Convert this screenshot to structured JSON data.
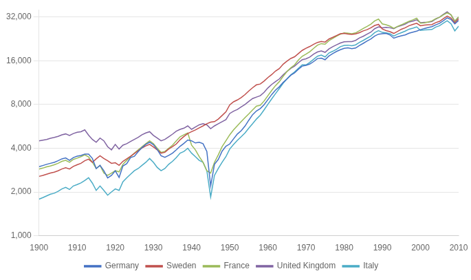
{
  "chart_data": {
    "type": "line",
    "log": "y",
    "grid": "y",
    "legend": "bottom",
    "x": [
      1900,
      1901,
      1902,
      1903,
      1904,
      1905,
      1906,
      1907,
      1908,
      1909,
      1910,
      1911,
      1912,
      1913,
      1914,
      1915,
      1916,
      1917,
      1918,
      1919,
      1920,
      1921,
      1922,
      1923,
      1924,
      1925,
      1926,
      1927,
      1928,
      1929,
      1930,
      1931,
      1932,
      1933,
      1934,
      1935,
      1936,
      1937,
      1938,
      1939,
      1940,
      1941,
      1942,
      1943,
      1944,
      1945,
      1946,
      1947,
      1948,
      1949,
      1950,
      1951,
      1952,
      1953,
      1954,
      1955,
      1956,
      1957,
      1958,
      1959,
      1960,
      1961,
      1962,
      1963,
      1964,
      1965,
      1966,
      1967,
      1968,
      1969,
      1970,
      1971,
      1972,
      1973,
      1974,
      1975,
      1976,
      1977,
      1978,
      1979,
      1980,
      1981,
      1982,
      1983,
      1984,
      1985,
      1986,
      1987,
      1988,
      1989,
      1990,
      1991,
      1992,
      1993,
      1994,
      1995,
      1996,
      1997,
      1998,
      1999,
      2000,
      2001,
      2002,
      2003,
      2004,
      2005,
      2006,
      2007,
      2008,
      2009,
      2010
    ],
    "series": [
      {
        "name": "Germany",
        "color": "#4472C4",
        "values": [
          2985,
          3040,
          3100,
          3150,
          3200,
          3280,
          3380,
          3430,
          3300,
          3450,
          3530,
          3570,
          3650,
          3648,
          3400,
          2900,
          3050,
          2800,
          2500,
          2600,
          2796,
          2520,
          3020,
          3130,
          3450,
          3520,
          3790,
          4040,
          4250,
          4400,
          4230,
          3920,
          3550,
          3460,
          3570,
          3700,
          3900,
          4130,
          4320,
          4560,
          4500,
          4350,
          4400,
          4300,
          3800,
          2200,
          3100,
          3350,
          3820,
          4130,
          4280,
          4640,
          5010,
          5280,
          5680,
          6240,
          6810,
          7220,
          7500,
          7970,
          8640,
          9370,
          10050,
          10600,
          11350,
          12000,
          12720,
          13200,
          14000,
          14700,
          14870,
          15200,
          15800,
          16580,
          16700,
          16280,
          17260,
          17940,
          18560,
          19080,
          19480,
          19650,
          19400,
          19600,
          20400,
          21100,
          21900,
          22600,
          23700,
          24400,
          24600,
          24680,
          24100,
          22900,
          23400,
          23760,
          24100,
          24760,
          25200,
          25600,
          26200,
          26700,
          27100,
          27500,
          28300,
          29000,
          30200,
          31600,
          30800,
          28700,
          30300
        ]
      },
      {
        "name": "Sweden",
        "color": "#C0504D",
        "values": [
          2561,
          2600,
          2650,
          2700,
          2740,
          2800,
          2880,
          2940,
          2880,
          3000,
          3080,
          3150,
          3280,
          3362,
          3200,
          3380,
          3550,
          3400,
          3280,
          3150,
          3180,
          3050,
          3250,
          3380,
          3520,
          3680,
          3850,
          4020,
          4150,
          4250,
          4080,
          3900,
          3700,
          3750,
          3950,
          4100,
          4280,
          4580,
          4820,
          5050,
          5200,
          5350,
          5520,
          5700,
          5900,
          6050,
          6100,
          6350,
          6720,
          7120,
          7950,
          8350,
          8600,
          8930,
          9360,
          9920,
          10440,
          10930,
          11070,
          11600,
          12260,
          12850,
          13600,
          14150,
          15150,
          15900,
          16600,
          17050,
          17950,
          18870,
          19510,
          20080,
          20800,
          21400,
          21750,
          21530,
          22600,
          23200,
          23870,
          24550,
          24700,
          24460,
          24340,
          24500,
          25000,
          25700,
          26200,
          27000,
          28000,
          28500,
          26500,
          25800,
          25400,
          24700,
          25500,
          26400,
          27000,
          27900,
          28500,
          29000,
          27900,
          28200,
          28300,
          28400,
          29300,
          29900,
          31200,
          32500,
          31500,
          29200,
          31100
        ]
      },
      {
        "name": "France",
        "color": "#9BBB59",
        "values": [
          2876,
          2920,
          2980,
          3020,
          3080,
          3150,
          3250,
          3300,
          3200,
          3350,
          3420,
          3500,
          3600,
          3485,
          3200,
          2900,
          3050,
          2700,
          2600,
          2700,
          2800,
          2750,
          3100,
          3300,
          3500,
          3700,
          3900,
          4100,
          4300,
          4500,
          4300,
          4000,
          3750,
          3800,
          4000,
          4200,
          4500,
          4800,
          4950,
          5100,
          4200,
          3900,
          3500,
          3200,
          2800,
          2700,
          3200,
          3600,
          4100,
          4500,
          4950,
          5350,
          5720,
          6100,
          6500,
          6900,
          7350,
          7800,
          7900,
          8450,
          9200,
          10000,
          10800,
          11500,
          12500,
          13500,
          14300,
          15000,
          16200,
          17200,
          17800,
          18500,
          19500,
          20500,
          21000,
          20800,
          22000,
          22800,
          23600,
          24400,
          24900,
          24800,
          24600,
          24900,
          25800,
          26700,
          27600,
          28600,
          30100,
          31000,
          28700,
          28300,
          27700,
          26800,
          27600,
          28300,
          29100,
          29900,
          30600,
          31400,
          29000,
          29200,
          29600,
          30100,
          31200,
          31900,
          33100,
          34200,
          33200,
          30100,
          32100
        ]
      },
      {
        "name": "United Kingdom",
        "color": "#8064A2",
        "values": [
          4492,
          4550,
          4600,
          4680,
          4750,
          4830,
          4950,
          5020,
          4900,
          5050,
          5150,
          5200,
          5350,
          4921,
          4600,
          4400,
          4700,
          4500,
          4100,
          3900,
          4250,
          3950,
          4200,
          4300,
          4450,
          4600,
          4750,
          4950,
          5100,
          5200,
          4900,
          4700,
          4500,
          4600,
          4800,
          5000,
          5250,
          5400,
          5500,
          5700,
          5400,
          5600,
          5800,
          5900,
          5800,
          5450,
          5700,
          5900,
          6100,
          6300,
          6939,
          7200,
          7400,
          7700,
          8000,
          8400,
          8800,
          9000,
          9200,
          9700,
          10400,
          11000,
          11500,
          12000,
          12800,
          13500,
          14200,
          14700,
          15500,
          16300,
          16500,
          17000,
          17800,
          18400,
          18700,
          18300,
          19300,
          20000,
          20600,
          21200,
          21600,
          21700,
          21700,
          22100,
          23000,
          23600,
          24400,
          25200,
          26600,
          27400,
          27000,
          27200,
          27000,
          26600,
          27500,
          28000,
          28600,
          29600,
          30000,
          30600,
          29300,
          29400,
          29500,
          29800,
          31000,
          32000,
          33400,
          34800,
          33100,
          29800,
          31900
        ]
      },
      {
        "name": "Italy",
        "color": "#4BACC6",
        "values": [
          1785,
          1830,
          1880,
          1930,
          1960,
          2020,
          2100,
          2150,
          2080,
          2200,
          2250,
          2310,
          2400,
          2507,
          2300,
          2050,
          2200,
          2050,
          1900,
          2000,
          2100,
          2050,
          2350,
          2500,
          2650,
          2800,
          2900,
          3050,
          3200,
          3400,
          3200,
          2950,
          2800,
          2900,
          3100,
          3250,
          3450,
          3700,
          3800,
          4000,
          3700,
          3500,
          3300,
          3200,
          2800,
          1850,
          2600,
          2900,
          3200,
          3500,
          3950,
          4250,
          4530,
          4800,
          5100,
          5500,
          5900,
          6350,
          6750,
          7350,
          8020,
          8750,
          9500,
          10300,
          11200,
          12000,
          12800,
          13400,
          14200,
          15000,
          15000,
          15600,
          16400,
          17200,
          17500,
          17000,
          18100,
          18600,
          19200,
          20000,
          20400,
          20500,
          20300,
          20600,
          21400,
          22100,
          22900,
          23700,
          25000,
          25800,
          25100,
          24900,
          24600,
          23700,
          24400,
          25000,
          25600,
          26400,
          26800,
          27400,
          25900,
          26100,
          26200,
          26300,
          27300,
          27900,
          29100,
          30200,
          28800,
          25700,
          27700
        ]
      }
    ],
    "xlim": [
      1900,
      2010
    ],
    "xticks": [
      1900,
      1910,
      1920,
      1930,
      1940,
      1950,
      1960,
      1970,
      1980,
      1990,
      2000,
      2010
    ],
    "ylim": [
      1000,
      36000
    ],
    "yticks": [
      {
        "value": 1000,
        "label": "1,000"
      },
      {
        "value": 2000,
        "label": "2,000"
      },
      {
        "value": 4000,
        "label": "4,000"
      },
      {
        "value": 8000,
        "label": "8,000"
      },
      {
        "value": 16000,
        "label": "16,000"
      },
      {
        "value": 32000,
        "label": "32,000"
      }
    ]
  }
}
